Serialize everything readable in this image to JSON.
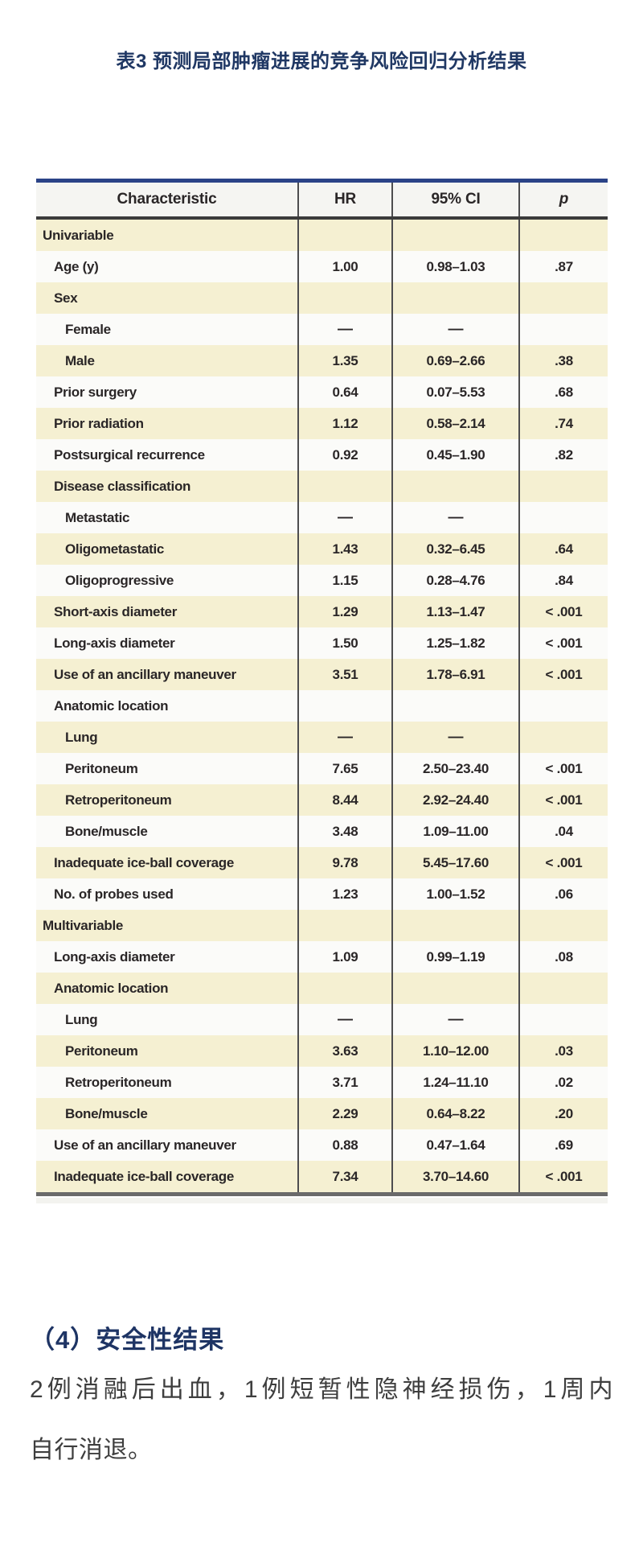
{
  "page": {
    "title": "表3 预测局部肿瘤进展的竞争风险回归分析结果"
  },
  "table": {
    "headers": {
      "characteristic": "Characteristic",
      "hr": "HR",
      "ci": "95% CI",
      "p": "p"
    },
    "rows": [
      {
        "label": "Univariable",
        "indent": 0,
        "hr": "",
        "ci": "",
        "p": ""
      },
      {
        "label": "Age (y)",
        "indent": 1,
        "hr": "1.00",
        "ci": "0.98–1.03",
        "p": ".87"
      },
      {
        "label": "Sex",
        "indent": 1,
        "hr": "",
        "ci": "",
        "p": ""
      },
      {
        "label": "Female",
        "indent": 2,
        "hr": "—",
        "ci": "—",
        "p": ""
      },
      {
        "label": "Male",
        "indent": 2,
        "hr": "1.35",
        "ci": "0.69–2.66",
        "p": ".38"
      },
      {
        "label": "Prior surgery",
        "indent": 1,
        "hr": "0.64",
        "ci": "0.07–5.53",
        "p": ".68"
      },
      {
        "label": "Prior radiation",
        "indent": 1,
        "hr": "1.12",
        "ci": "0.58–2.14",
        "p": ".74"
      },
      {
        "label": "Postsurgical recurrence",
        "indent": 1,
        "hr": "0.92",
        "ci": "0.45–1.90",
        "p": ".82"
      },
      {
        "label": "Disease classification",
        "indent": 1,
        "hr": "",
        "ci": "",
        "p": ""
      },
      {
        "label": "Metastatic",
        "indent": 2,
        "hr": "—",
        "ci": "—",
        "p": ""
      },
      {
        "label": "Oligometastatic",
        "indent": 2,
        "hr": "1.43",
        "ci": "0.32–6.45",
        "p": ".64"
      },
      {
        "label": "Oligoprogressive",
        "indent": 2,
        "hr": "1.15",
        "ci": "0.28–4.76",
        "p": ".84"
      },
      {
        "label": "Short-axis diameter",
        "indent": 1,
        "hr": "1.29",
        "ci": "1.13–1.47",
        "p": "< .001"
      },
      {
        "label": "Long-axis diameter",
        "indent": 1,
        "hr": "1.50",
        "ci": "1.25–1.82",
        "p": "< .001"
      },
      {
        "label": "Use of an ancillary maneuver",
        "indent": 1,
        "hr": "3.51",
        "ci": "1.78–6.91",
        "p": "< .001"
      },
      {
        "label": "Anatomic location",
        "indent": 1,
        "hr": "",
        "ci": "",
        "p": ""
      },
      {
        "label": "Lung",
        "indent": 2,
        "hr": "—",
        "ci": "—",
        "p": ""
      },
      {
        "label": "Peritoneum",
        "indent": 2,
        "hr": "7.65",
        "ci": "2.50–23.40",
        "p": "< .001"
      },
      {
        "label": "Retroperitoneum",
        "indent": 2,
        "hr": "8.44",
        "ci": "2.92–24.40",
        "p": "< .001"
      },
      {
        "label": "Bone/muscle",
        "indent": 2,
        "hr": "3.48",
        "ci": "1.09–11.00",
        "p": ".04"
      },
      {
        "label": "Inadequate ice-ball coverage",
        "indent": 1,
        "hr": "9.78",
        "ci": "5.45–17.60",
        "p": "< .001"
      },
      {
        "label": "No. of probes used",
        "indent": 1,
        "hr": "1.23",
        "ci": "1.00–1.52",
        "p": ".06"
      },
      {
        "label": "Multivariable",
        "indent": 0,
        "hr": "",
        "ci": "",
        "p": ""
      },
      {
        "label": "Long-axis diameter",
        "indent": 1,
        "hr": "1.09",
        "ci": "0.99–1.19",
        "p": ".08"
      },
      {
        "label": "Anatomic location",
        "indent": 1,
        "hr": "",
        "ci": "",
        "p": ""
      },
      {
        "label": "Lung",
        "indent": 2,
        "hr": "—",
        "ci": "—",
        "p": ""
      },
      {
        "label": "Peritoneum",
        "indent": 2,
        "hr": "3.63",
        "ci": "1.10–12.00",
        "p": ".03"
      },
      {
        "label": "Retroperitoneum",
        "indent": 2,
        "hr": "3.71",
        "ci": "1.24–11.10",
        "p": ".02"
      },
      {
        "label": "Bone/muscle",
        "indent": 2,
        "hr": "2.29",
        "ci": "0.64–8.22",
        "p": ".20"
      },
      {
        "label": "Use of an ancillary maneuver",
        "indent": 1,
        "hr": "0.88",
        "ci": "0.47–1.64",
        "p": ".69"
      },
      {
        "label": "Inadequate ice-ball coverage",
        "indent": 1,
        "hr": "7.34",
        "ci": "3.70–14.60",
        "p": "< .001"
      }
    ]
  },
  "section": {
    "heading": "（4）安全性结果",
    "lines": [
      "2例消融后出血，1例短暂性隐神经损伤，1周内",
      "自行消退。"
    ]
  },
  "colors": {
    "title_navy": "#203864",
    "table_top_border": "#2b4387",
    "row_cream": "#f5f0d2",
    "row_white": "#fbfbf9",
    "header_bg": "#f5f5f2",
    "text_dark": "#2a2627",
    "paragraph_gray": "#3e3e3e"
  }
}
